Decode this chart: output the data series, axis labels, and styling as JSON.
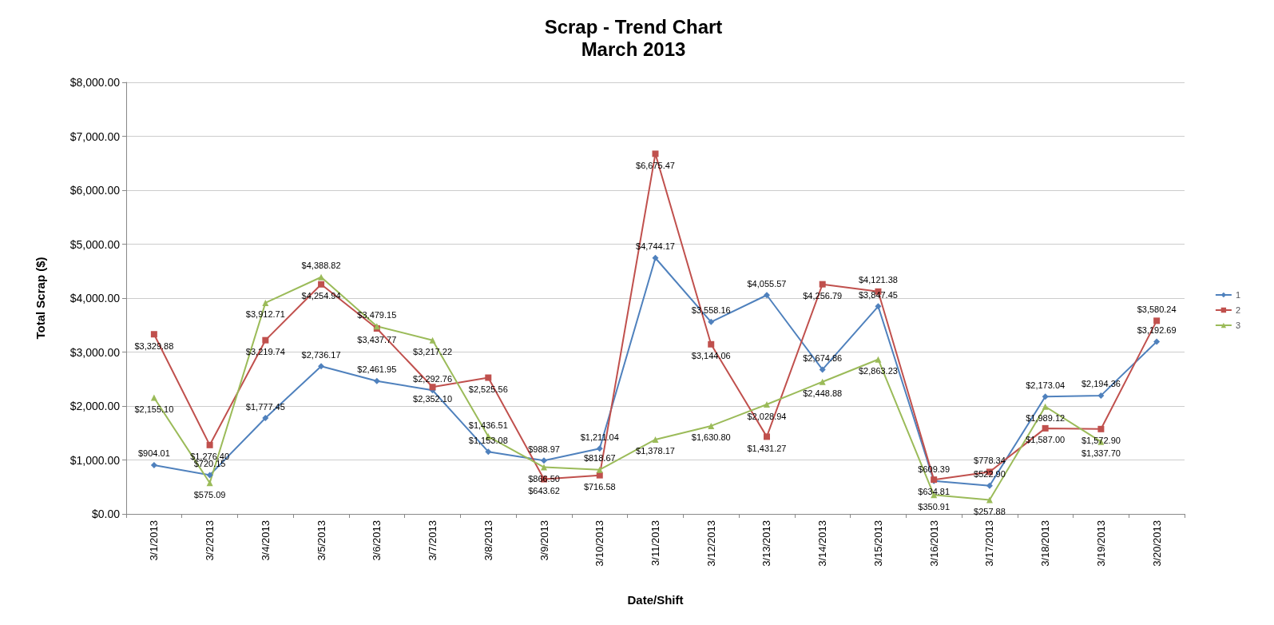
{
  "chart_data": {
    "type": "line",
    "title": "Scrap - Trend Chart",
    "subtitle": "March 2013",
    "xlabel": "Date/Shift",
    "ylabel": "Total Scrap ($)",
    "categories": [
      "3/1/2013",
      "3/2/2013",
      "3/4/2013",
      "3/5/2013",
      "3/6/2013",
      "3/7/2013",
      "3/8/2013",
      "3/9/2013",
      "3/10/2013",
      "3/11/2013",
      "3/12/2013",
      "3/13/2013",
      "3/14/2013",
      "3/15/2013",
      "3/16/2013",
      "3/17/2013",
      "3/18/2013",
      "3/19/2013",
      "3/20/2013"
    ],
    "series": [
      {
        "name": "1",
        "color": "#4f81bd",
        "marker": "diamond",
        "values": [
          904.01,
          720.15,
          1777.45,
          2736.17,
          2461.95,
          2292.76,
          1153.08,
          988.97,
          1211.04,
          4744.17,
          3558.16,
          4055.57,
          2674.86,
          3847.45,
          609.39,
          522.9,
          2173.04,
          2194.36,
          3192.69
        ],
        "value_labels": [
          "$904.01",
          "$720.15",
          "$1,777.45",
          "$2,736.17",
          "$2,461.95",
          "$2,292.76",
          "$1,153.08",
          "$988.97",
          "$1,211.04",
          "$4,744.17",
          "$3,558.16",
          "$4,055.57",
          "$2,674.86",
          "$3,847.45",
          "$609.39",
          "$522.90",
          "$2,173.04",
          "$2,194.36",
          "$3,192.69"
        ]
      },
      {
        "name": "2",
        "color": "#c0504d",
        "marker": "square",
        "values": [
          3329.88,
          1276.4,
          3219.74,
          4254.94,
          3437.77,
          2352.1,
          2525.56,
          643.62,
          716.58,
          6675.47,
          3144.06,
          1431.27,
          4256.79,
          4121.38,
          634.81,
          778.34,
          1587.0,
          1572.9,
          3580.24
        ],
        "value_labels": [
          "$3,329.88",
          "$1,276.40",
          "$3,219.74",
          "$4,254.94",
          "$3,437.77",
          "$2,352.10",
          "$2,525.56",
          "$643.62",
          "$716.58",
          "$6,675.47",
          "$3,144.06",
          "$1,431.27",
          "$4,256.79",
          "$4,121.38",
          "$634.81",
          "$778.34",
          "$1,587.00",
          "$1,572.90",
          "$3,580.24"
        ]
      },
      {
        "name": "3",
        "color": "#9bbb59",
        "marker": "triangle",
        "values": [
          2155.1,
          575.09,
          3912.71,
          4388.82,
          3479.15,
          3217.22,
          1436.51,
          866.5,
          818.67,
          1378.17,
          1630.8,
          2028.94,
          2448.88,
          2863.23,
          350.91,
          257.88,
          1989.12,
          1337.7,
          null
        ],
        "value_labels": [
          "$2,155.10",
          "$575.09",
          "$3,912.71",
          "$4,388.82",
          "$3,479.15",
          "$3,217.22",
          "$1,436.51",
          "$866.50",
          "$818.67",
          "$1,378.17",
          "$1,630.80",
          "$2,028.94",
          "$2,448.88",
          "$2,863.23",
          "$350.91",
          "$257.88",
          "$1,989.12",
          "$1,337.70",
          null
        ]
      }
    ],
    "ylim": [
      0,
      8000
    ],
    "yticks": [
      {
        "value": 0,
        "label": "$0.00"
      },
      {
        "value": 1000,
        "label": "$1,000.00"
      },
      {
        "value": 2000,
        "label": "$2,000.00"
      },
      {
        "value": 3000,
        "label": "$3,000.00"
      },
      {
        "value": 4000,
        "label": "$4,000.00"
      },
      {
        "value": 5000,
        "label": "$5,000.00"
      },
      {
        "value": 6000,
        "label": "$6,000.00"
      },
      {
        "value": 7000,
        "label": "$7,000.00"
      },
      {
        "value": 8000,
        "label": "$8,000.00"
      }
    ],
    "grid": "y",
    "legend": "right",
    "line_style": "solid"
  }
}
